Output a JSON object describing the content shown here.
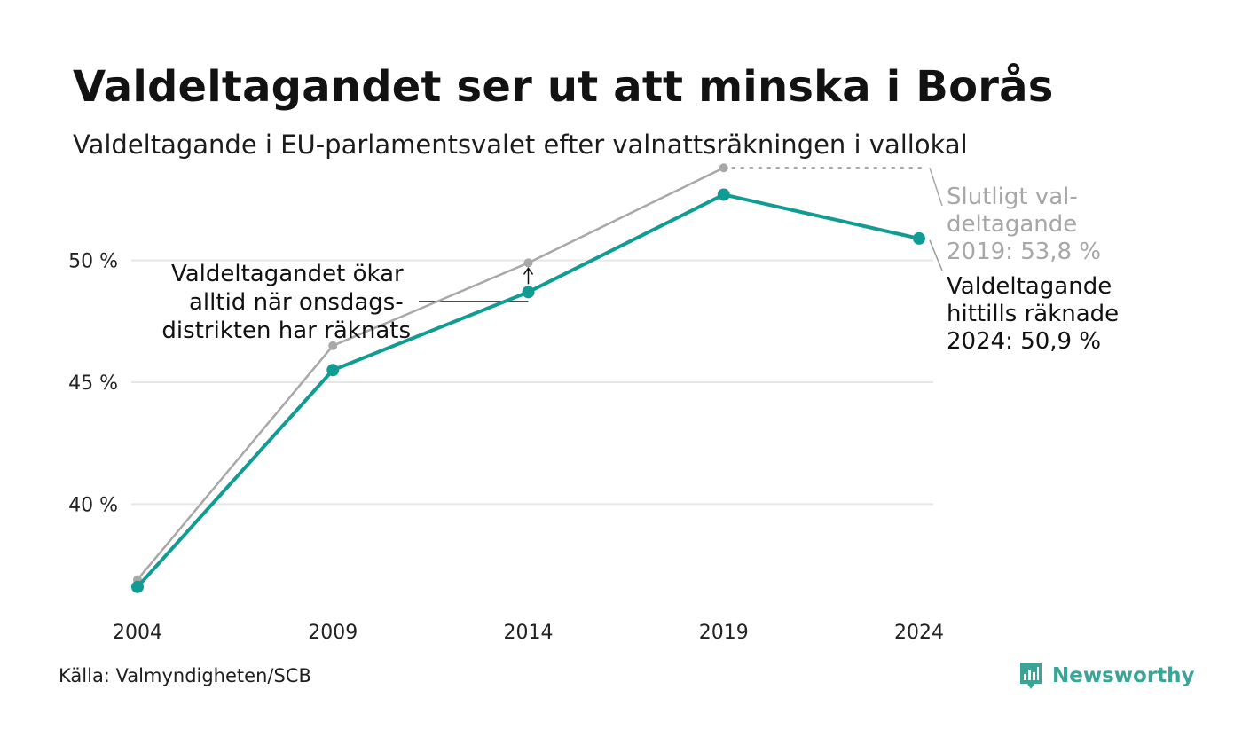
{
  "title": "Valdeltagandet ser ut att minska i Borås",
  "subtitle": "Valdeltagande i EU-parlamentsvalet efter valnattsräkningen i vallokal",
  "source": "Källa: Valmyndigheten/SCB",
  "brand": "Newsworthy",
  "colors": {
    "primary": "#109c92",
    "secondary": "#a8a8a8",
    "grid": "#e6e6e6",
    "brand": "#3aa596"
  },
  "chart_data": {
    "type": "line",
    "categories": [
      "2004",
      "2009",
      "2014",
      "2019",
      "2024"
    ],
    "ylim": [
      35.5,
      54.5
    ],
    "yticks": [
      40,
      45,
      50
    ],
    "ytick_labels": [
      "40 %",
      "45 %",
      "50 %"
    ],
    "grid": true,
    "series": [
      {
        "role": "final",
        "color": "#a8a8a8",
        "values": [
          36.9,
          46.5,
          49.9,
          53.8,
          null
        ]
      },
      {
        "role": "election-night",
        "color": "#109c92",
        "values": [
          36.6,
          45.5,
          48.7,
          52.7,
          50.9
        ]
      }
    ],
    "annotations": {
      "final_2019": [
        "Slutligt val-",
        "deltagande",
        "2019: 53,8 %"
      ],
      "current_2024": [
        "Valdeltagande",
        "hittills räknade",
        "2024: 50,9 %"
      ],
      "wednesday": [
        "Valdeltagandet ökar",
        "alltid när onsdags-",
        "distrikten har räknats"
      ]
    }
  }
}
